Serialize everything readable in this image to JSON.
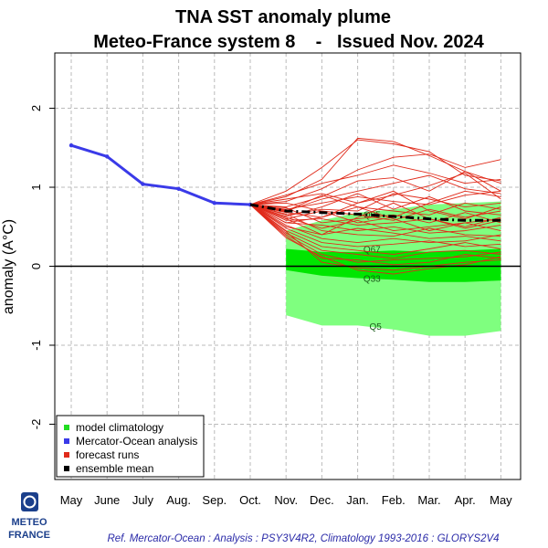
{
  "chart_data": {
    "type": "line",
    "title": "TNA SST anomaly plume",
    "subtitle": "Meteo-France system 8    -   Issued Nov. 2024",
    "xlabel": "",
    "ylabel": "anomaly (A°C)",
    "ylim": [
      -2.7,
      2.7
    ],
    "yticks": [
      -2,
      -1,
      0,
      1,
      2
    ],
    "ytick_labels": [
      "-2",
      "-1",
      "0",
      "1",
      "2"
    ],
    "grid": true,
    "legend_placement": "bottom-left",
    "months": [
      "May",
      "June",
      "July",
      "Aug.",
      "Sep.",
      "Oct.",
      "Nov.",
      "Dec.",
      "Jan.",
      "Feb.",
      "Mar.",
      "Apr.",
      "May"
    ],
    "analysis": {
      "name": "Mercator-Ocean analysis",
      "color": "#3a3ae8",
      "x": [
        0,
        1,
        2,
        3,
        4,
        5
      ],
      "y": [
        1.53,
        1.39,
        1.04,
        0.98,
        0.8,
        0.78
      ]
    },
    "ensemble_mean": {
      "name": "ensemble mean",
      "color": "#000000",
      "x": [
        5,
        6,
        7,
        8,
        9,
        10,
        11,
        12
      ],
      "y": [
        0.78,
        0.7,
        0.68,
        0.66,
        0.63,
        0.6,
        0.58,
        0.58
      ]
    },
    "climatology": {
      "name": "model climatology",
      "x": [
        6,
        7,
        8,
        9,
        10,
        11,
        12
      ],
      "q5": [
        -0.62,
        -0.75,
        -0.75,
        -0.8,
        -0.88,
        -0.88,
        -0.82
      ],
      "q33": [
        -0.05,
        -0.12,
        -0.15,
        -0.17,
        -0.2,
        -0.2,
        -0.18
      ],
      "q67": [
        0.22,
        0.18,
        0.18,
        0.2,
        0.18,
        0.2,
        0.22
      ],
      "q95": [
        0.45,
        0.58,
        0.68,
        0.72,
        0.78,
        0.8,
        0.82
      ],
      "labels": [
        "Q95",
        "Q67",
        "Q33",
        "Q5"
      ],
      "label_x": [
        8.4,
        8.4,
        8.4,
        8.5
      ],
      "label_y": [
        0.66,
        0.22,
        -0.15,
        -0.76
      ]
    },
    "forecast_runs": {
      "name": "forecast runs",
      "color": "#e02a1a",
      "x": [
        5,
        6,
        7,
        8,
        9,
        10,
        11,
        12
      ],
      "y": [
        [
          0.78,
          0.95,
          1.25,
          1.6,
          1.55,
          1.45,
          1.15,
          1.08
        ],
        [
          0.78,
          0.88,
          1.1,
          1.62,
          1.58,
          1.4,
          1.2,
          0.95
        ],
        [
          0.78,
          0.82,
          0.98,
          1.22,
          1.38,
          1.42,
          1.25,
          1.35
        ],
        [
          0.78,
          0.9,
          1.05,
          1.15,
          1.28,
          1.18,
          1.05,
          1.1
        ],
        [
          0.78,
          0.75,
          0.88,
          1.08,
          1.12,
          0.95,
          1.2,
          1.05
        ],
        [
          0.78,
          0.7,
          0.85,
          0.95,
          1.05,
          1.15,
          0.98,
          0.92
        ],
        [
          0.78,
          0.85,
          0.92,
          0.8,
          0.9,
          1.02,
          1.18,
          0.85
        ],
        [
          0.78,
          0.72,
          0.8,
          0.88,
          0.82,
          0.78,
          0.9,
          0.95
        ],
        [
          0.78,
          0.65,
          0.72,
          0.7,
          0.92,
          0.85,
          0.75,
          0.8
        ],
        [
          0.78,
          0.68,
          0.62,
          0.75,
          0.7,
          0.65,
          0.8,
          0.72
        ],
        [
          0.78,
          0.6,
          0.7,
          0.65,
          0.58,
          0.72,
          0.62,
          0.7
        ],
        [
          0.78,
          0.74,
          0.55,
          0.6,
          0.65,
          0.55,
          0.68,
          0.55
        ],
        [
          0.78,
          0.58,
          0.6,
          0.52,
          0.55,
          0.6,
          0.5,
          0.62
        ],
        [
          0.78,
          0.62,
          0.48,
          0.58,
          0.45,
          0.5,
          0.55,
          0.45
        ],
        [
          0.78,
          0.55,
          0.52,
          0.45,
          0.5,
          0.42,
          0.45,
          0.52
        ],
        [
          0.78,
          0.66,
          0.45,
          0.4,
          0.38,
          0.48,
          0.4,
          0.38
        ],
        [
          0.78,
          0.5,
          0.4,
          0.48,
          0.42,
          0.35,
          0.38,
          0.32
        ],
        [
          0.78,
          0.52,
          0.35,
          0.3,
          0.35,
          0.3,
          0.32,
          0.4
        ],
        [
          0.78,
          0.48,
          0.3,
          0.25,
          0.28,
          0.32,
          0.25,
          0.28
        ],
        [
          0.78,
          0.45,
          0.25,
          0.2,
          0.15,
          0.22,
          0.3,
          0.22
        ],
        [
          0.78,
          0.42,
          0.2,
          0.15,
          0.1,
          0.18,
          0.2,
          0.15
        ],
        [
          0.78,
          0.4,
          0.15,
          0.05,
          0.08,
          0.1,
          0.12,
          0.18
        ],
        [
          0.78,
          0.38,
          0.1,
          0.08,
          0.02,
          0.05,
          0.15,
          0.1
        ],
        [
          0.78,
          0.44,
          0.05,
          -0.02,
          -0.05,
          0.0,
          0.05,
          0.08
        ],
        [
          0.78,
          0.36,
          0.12,
          -0.05,
          -0.1,
          -0.03,
          0.02,
          0.12
        ],
        [
          0.78,
          0.55,
          0.62,
          0.8,
          0.95,
          0.7,
          0.6,
          0.75
        ],
        [
          0.78,
          0.63,
          0.75,
          0.92,
          0.72,
          0.88,
          0.7,
          0.65
        ],
        [
          0.78,
          0.8,
          0.7,
          0.55,
          0.62,
          0.8,
          0.95,
          0.88
        ],
        [
          0.78,
          0.7,
          0.9,
          0.75,
          0.6,
          0.45,
          0.55,
          0.6
        ],
        [
          0.78,
          0.6,
          0.4,
          0.62,
          0.8,
          0.6,
          0.48,
          0.58
        ]
      ]
    },
    "legend": [
      "model climatology",
      "Mercator-Ocean analysis",
      "forecast runs",
      "ensemble mean"
    ],
    "legend_colors": [
      "#22dd22",
      "#3a3ae8",
      "#e02a1a",
      "#000000"
    ],
    "zero_line": true
  },
  "logo": {
    "line1": "METEO",
    "line2": "FRANCE"
  },
  "footer": "Ref. Mercator-Ocean :  Analysis : PSY3V4R2, Climatology 1993-2016 : GLORYS2V4",
  "colors": {
    "band_outer": "#7fff7f",
    "band_inner": "#00e600",
    "grid": "#bbbbbb",
    "logo": "#1b3f8b"
  }
}
